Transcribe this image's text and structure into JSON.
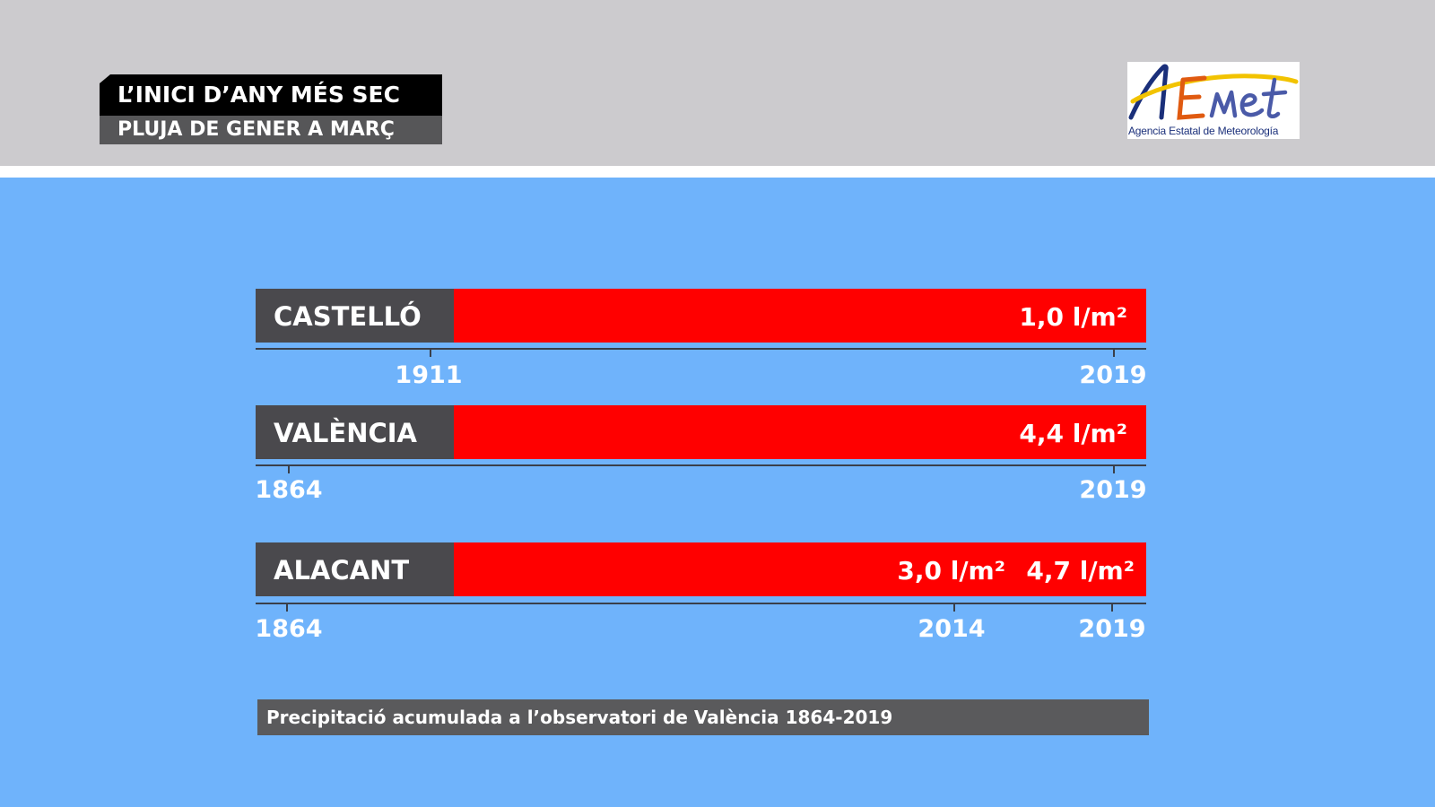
{
  "header": {
    "title": "L’INICI D’ANY MÉS SEC",
    "subtitle": "PLUJA DE GENER A MARÇ"
  },
  "logo": {
    "wordmark": "AEmet",
    "caption": "Agencia Estatal de Meteorología"
  },
  "chart_data": {
    "type": "bar",
    "title": "L’INICI D’ANY MÉS SEC",
    "subtitle": "PLUJA DE GENER A MARÇ",
    "unit": "l/m²",
    "rows": [
      {
        "station": "CASTELLÓ",
        "value_labels": [
          "1,0 l/m²"
        ],
        "ticks": [
          "1911",
          "2019"
        ]
      },
      {
        "station": "VALÈNCIA",
        "value_labels": [
          "4,4 l/m²"
        ],
        "ticks": [
          "1864",
          "2019"
        ]
      },
      {
        "station": "ALACANT",
        "value_labels": [
          "3,0 l/m²",
          "4,7 l/m²"
        ],
        "ticks": [
          "1864",
          "2014",
          "2019"
        ]
      }
    ],
    "note": "Precipitació acumulada a l’observatori de València 1864-2019"
  },
  "colors": {
    "background": "#6fb3fb",
    "header": "#cccbce",
    "bar": "#ff0000",
    "label_box": "#4a494d",
    "caption_box": "#5a5a5c",
    "text": "#ffffff"
  }
}
